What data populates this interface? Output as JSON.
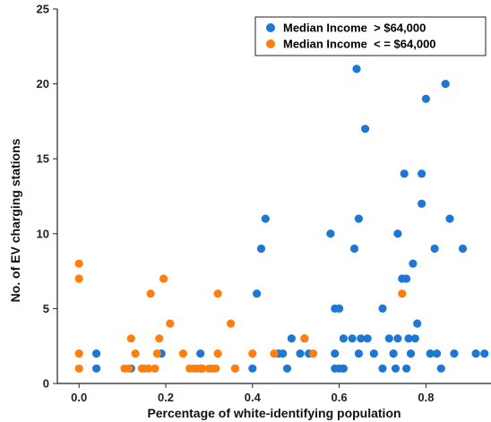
{
  "chart_data": {
    "type": "scatter",
    "xlabel": "Percentage of white-identifying population",
    "ylabel": "No. of EV charging stations",
    "xlim": [
      -0.05,
      0.95
    ],
    "ylim": [
      0,
      25
    ],
    "xticks": [
      0.0,
      0.2,
      0.4,
      0.6,
      0.8
    ],
    "xtick_labels": [
      "0.0",
      "0.2",
      "0.4",
      "0.6",
      "0.8"
    ],
    "yticks": [
      0,
      5,
      10,
      15,
      20,
      25
    ],
    "ytick_labels": [
      "0",
      "5",
      "10",
      "15",
      "20",
      "25"
    ],
    "grid": false,
    "legend_position": "top-right",
    "series": [
      {
        "name": "Median Income  > $64,000",
        "color": "#1f77d4",
        "points": [
          [
            0.04,
            1
          ],
          [
            0.04,
            2
          ],
          [
            0.12,
            1
          ],
          [
            0.19,
            2
          ],
          [
            0.28,
            1
          ],
          [
            0.28,
            2
          ],
          [
            0.36,
            1
          ],
          [
            0.4,
            1
          ],
          [
            0.41,
            6
          ],
          [
            0.42,
            9
          ],
          [
            0.43,
            11
          ],
          [
            0.46,
            2
          ],
          [
            0.47,
            2
          ],
          [
            0.48,
            1
          ],
          [
            0.49,
            3
          ],
          [
            0.51,
            2
          ],
          [
            0.52,
            3
          ],
          [
            0.53,
            2
          ],
          [
            0.58,
            10
          ],
          [
            0.59,
            1
          ],
          [
            0.59,
            2
          ],
          [
            0.59,
            5
          ],
          [
            0.6,
            1
          ],
          [
            0.6,
            5
          ],
          [
            0.61,
            1
          ],
          [
            0.61,
            3
          ],
          [
            0.63,
            3
          ],
          [
            0.635,
            9
          ],
          [
            0.64,
            21
          ],
          [
            0.645,
            2
          ],
          [
            0.645,
            11
          ],
          [
            0.65,
            3
          ],
          [
            0.66,
            17
          ],
          [
            0.665,
            3
          ],
          [
            0.68,
            2
          ],
          [
            0.7,
            1
          ],
          [
            0.7,
            5
          ],
          [
            0.715,
            3
          ],
          [
            0.725,
            2
          ],
          [
            0.73,
            1
          ],
          [
            0.735,
            10
          ],
          [
            0.735,
            3
          ],
          [
            0.745,
            7
          ],
          [
            0.75,
            14
          ],
          [
            0.755,
            7
          ],
          [
            0.755,
            1
          ],
          [
            0.76,
            3
          ],
          [
            0.765,
            2
          ],
          [
            0.77,
            8
          ],
          [
            0.775,
            3
          ],
          [
            0.78,
            4
          ],
          [
            0.79,
            14
          ],
          [
            0.79,
            12
          ],
          [
            0.8,
            19
          ],
          [
            0.81,
            2
          ],
          [
            0.82,
            9
          ],
          [
            0.825,
            2
          ],
          [
            0.835,
            1
          ],
          [
            0.845,
            20
          ],
          [
            0.855,
            11
          ],
          [
            0.865,
            2
          ],
          [
            0.885,
            9
          ],
          [
            0.915,
            2
          ],
          [
            0.935,
            2
          ]
        ]
      },
      {
        "name": "Median Income  < = $64,000",
        "color": "#ff7f0e",
        "points": [
          [
            0.0,
            1
          ],
          [
            0.0,
            2
          ],
          [
            0.0,
            7
          ],
          [
            0.0,
            8
          ],
          [
            0.105,
            1
          ],
          [
            0.115,
            1
          ],
          [
            0.12,
            3
          ],
          [
            0.13,
            2
          ],
          [
            0.145,
            1
          ],
          [
            0.15,
            1
          ],
          [
            0.16,
            1
          ],
          [
            0.165,
            6
          ],
          [
            0.175,
            1
          ],
          [
            0.18,
            2
          ],
          [
            0.185,
            3
          ],
          [
            0.195,
            7
          ],
          [
            0.21,
            4
          ],
          [
            0.24,
            2
          ],
          [
            0.255,
            1
          ],
          [
            0.265,
            1
          ],
          [
            0.27,
            1
          ],
          [
            0.28,
            1
          ],
          [
            0.285,
            1
          ],
          [
            0.3,
            1
          ],
          [
            0.305,
            1
          ],
          [
            0.315,
            1
          ],
          [
            0.32,
            6
          ],
          [
            0.32,
            2
          ],
          [
            0.35,
            4
          ],
          [
            0.36,
            1
          ],
          [
            0.4,
            2
          ],
          [
            0.45,
            2
          ],
          [
            0.52,
            3
          ],
          [
            0.54,
            2
          ],
          [
            0.745,
            6
          ]
        ]
      }
    ]
  }
}
